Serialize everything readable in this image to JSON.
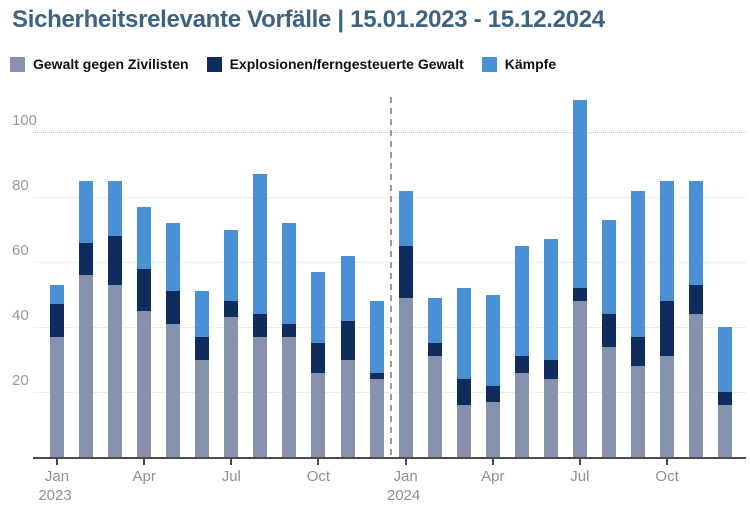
{
  "title": "Sicherheitsrelevante Vorfälle | 15.01.2023 - 15.12.2024",
  "colors": {
    "title": "#3d6282",
    "legend_text": "#111111",
    "axis_label": "#999999",
    "axis_line": "#4c4c4c",
    "gridline_solid": "#ececec",
    "gridline_dotted": "#c4c4c4",
    "separator": "#9a9a9a",
    "background": "#ffffff"
  },
  "legend": {
    "items": [
      {
        "label": "Gewalt gegen Zivilisten",
        "color": "#8691ad"
      },
      {
        "label": "Explosionen/ferngesteuerte Gewalt",
        "color": "#0e2d5c"
      },
      {
        "label": "Kämpfe",
        "color": "#4a90d4"
      }
    ]
  },
  "chart_data": {
    "type": "bar",
    "stacked": true,
    "title": "Sicherheitsrelevante Vorfälle | 15.01.2023 - 15.12.2024",
    "categories": [
      "Jan 2023",
      "Feb 2023",
      "Mar 2023",
      "Apr 2023",
      "May 2023",
      "Jun 2023",
      "Jul 2023",
      "Aug 2023",
      "Sep 2023",
      "Oct 2023",
      "Nov 2023",
      "Dec 2023",
      "Jan 2024",
      "Feb 2024",
      "Mar 2024",
      "Apr 2024",
      "May 2024",
      "Jun 2024",
      "Jul 2024",
      "Aug 2024",
      "Sep 2024",
      "Oct 2024",
      "Nov 2024",
      "Dec 2024"
    ],
    "series": [
      {
        "key": "gewalt-gegen-zivilisten",
        "name": "Gewalt gegen Zivilisten",
        "color": "#8691ad",
        "values": [
          37,
          56,
          53,
          45,
          41,
          30,
          43,
          37,
          37,
          26,
          30,
          24,
          49,
          31,
          16,
          17,
          26,
          24,
          48,
          34,
          28,
          31,
          44,
          16
        ]
      },
      {
        "key": "explosionen-ferngesteuerte-gewalt",
        "name": "Explosionen/ferngesteuerte Gewalt",
        "color": "#0e2d5c",
        "values": [
          10,
          10,
          15,
          13,
          10,
          7,
          5,
          7,
          4,
          9,
          12,
          2,
          16,
          4,
          8,
          5,
          5,
          6,
          4,
          10,
          9,
          17,
          9,
          4
        ]
      },
      {
        "key": "kaempfe",
        "name": "Kämpfe",
        "color": "#4a90d4",
        "values": [
          6,
          19,
          17,
          19,
          21,
          14,
          22,
          43,
          31,
          22,
          20,
          22,
          17,
          14,
          28,
          28,
          34,
          37,
          58,
          29,
          45,
          37,
          32,
          20
        ]
      }
    ],
    "totals": [
      53,
      85,
      85,
      77,
      72,
      51,
      70,
      87,
      72,
      57,
      62,
      48,
      82,
      49,
      52,
      50,
      65,
      67,
      110,
      73,
      82,
      85,
      85,
      40
    ],
    "ylim": [
      0,
      112
    ],
    "yticks": [
      20,
      40,
      60,
      80,
      100
    ],
    "xticks": [
      {
        "index": 0,
        "label": "Jan",
        "year": "2023"
      },
      {
        "index": 3,
        "label": "Apr"
      },
      {
        "index": 6,
        "label": "Jul"
      },
      {
        "index": 9,
        "label": "Oct"
      },
      {
        "index": 12,
        "label": "Jan",
        "year": "2024"
      },
      {
        "index": 15,
        "label": "Apr"
      },
      {
        "index": 18,
        "label": "Jul"
      },
      {
        "index": 21,
        "label": "Oct"
      }
    ],
    "separator_between_indices": [
      11,
      12
    ],
    "legend_position": "top",
    "grid": true
  }
}
